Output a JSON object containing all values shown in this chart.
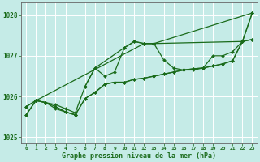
{
  "title": "Graphe pression niveau de la mer (hPa)",
  "hours": [
    0,
    1,
    2,
    3,
    4,
    5,
    6,
    7,
    8,
    9,
    10,
    11,
    12,
    13,
    14,
    15,
    16,
    17,
    18,
    19,
    20,
    21,
    22,
    23
  ],
  "series": [
    {
      "name": "upper",
      "color": "#1a6b1a",
      "linewidth": 0.9,
      "marker": "D",
      "markersize": 2.0,
      "values": [
        null,
        null,
        null,
        null,
        null,
        null,
        1026.25,
        1026.7,
        null,
        null,
        1027.2,
        1027.35,
        1027.3,
        1027.3,
        null,
        null,
        null,
        null,
        null,
        null,
        null,
        null,
        1027.35,
        1028.05
      ]
    },
    {
      "name": "peak_line",
      "color": "#1a6b1a",
      "linewidth": 0.9,
      "marker": "D",
      "markersize": 2.0,
      "values": [
        1025.75,
        1025.9,
        null,
        null,
        null,
        null,
        null,
        null,
        null,
        null,
        null,
        null,
        1027.3,
        1027.3,
        null,
        null,
        null,
        null,
        null,
        null,
        null,
        null,
        null,
        1028.05
      ]
    },
    {
      "name": "main_upper",
      "color": "#1a6b1a",
      "linewidth": 0.9,
      "marker": "D",
      "markersize": 2.0,
      "values": [
        1025.75,
        1025.9,
        1025.85,
        1025.8,
        1025.7,
        1025.6,
        1026.25,
        1026.7,
        1026.5,
        1026.6,
        1027.2,
        1027.35,
        1027.3,
        1027.3,
        1026.9,
        1026.7,
        1026.65,
        1026.65,
        1026.7,
        1027.0,
        1027.0,
        1027.1,
        1027.35,
        1028.05
      ]
    },
    {
      "name": "main_lower",
      "color": "#1a6b1a",
      "linewidth": 0.9,
      "marker": "D",
      "markersize": 2.0,
      "values": [
        1025.55,
        1025.9,
        1025.85,
        1025.7,
        1025.62,
        1025.55,
        1025.95,
        1026.1,
        1026.3,
        1026.35,
        1026.35,
        1026.42,
        1026.45,
        1026.5,
        1026.55,
        1026.6,
        1026.65,
        1026.68,
        1026.7,
        1026.75,
        1026.8,
        1026.88,
        1027.35,
        1027.4
      ]
    },
    {
      "name": "dip_line",
      "color": "#1a6b1a",
      "linewidth": 0.9,
      "marker": "D",
      "markersize": 2.0,
      "values": [
        1025.55,
        1025.9,
        1025.85,
        1025.75,
        1025.62,
        1025.55,
        null,
        null,
        null,
        null,
        null,
        null,
        null,
        null,
        null,
        null,
        null,
        null,
        null,
        null,
        null,
        null,
        null,
        null
      ]
    },
    {
      "name": "dip_extend",
      "color": "#1a6b1a",
      "linewidth": 0.9,
      "marker": "D",
      "markersize": 2.0,
      "values": [
        null,
        null,
        null,
        1025.75,
        1025.62,
        1025.55,
        1025.95,
        1026.1,
        1026.3,
        1026.35,
        1026.35,
        1026.42,
        1026.45,
        1026.5,
        1026.55,
        1026.6,
        1026.65,
        1026.68,
        1026.7,
        1026.75,
        1026.8,
        1026.88,
        1027.35,
        1027.4
      ]
    }
  ],
  "ylim": [
    1024.85,
    1028.3
  ],
  "yticks": [
    1025,
    1026,
    1027,
    1028
  ],
  "xlim": [
    -0.5,
    23.5
  ],
  "bg_color": "#c5ebe7",
  "grid_color": "#ffffff",
  "line_color": "#1a6b1a",
  "title_color": "#1a6b1a",
  "tick_color": "#1a6b1a",
  "axis_color": "#666666"
}
